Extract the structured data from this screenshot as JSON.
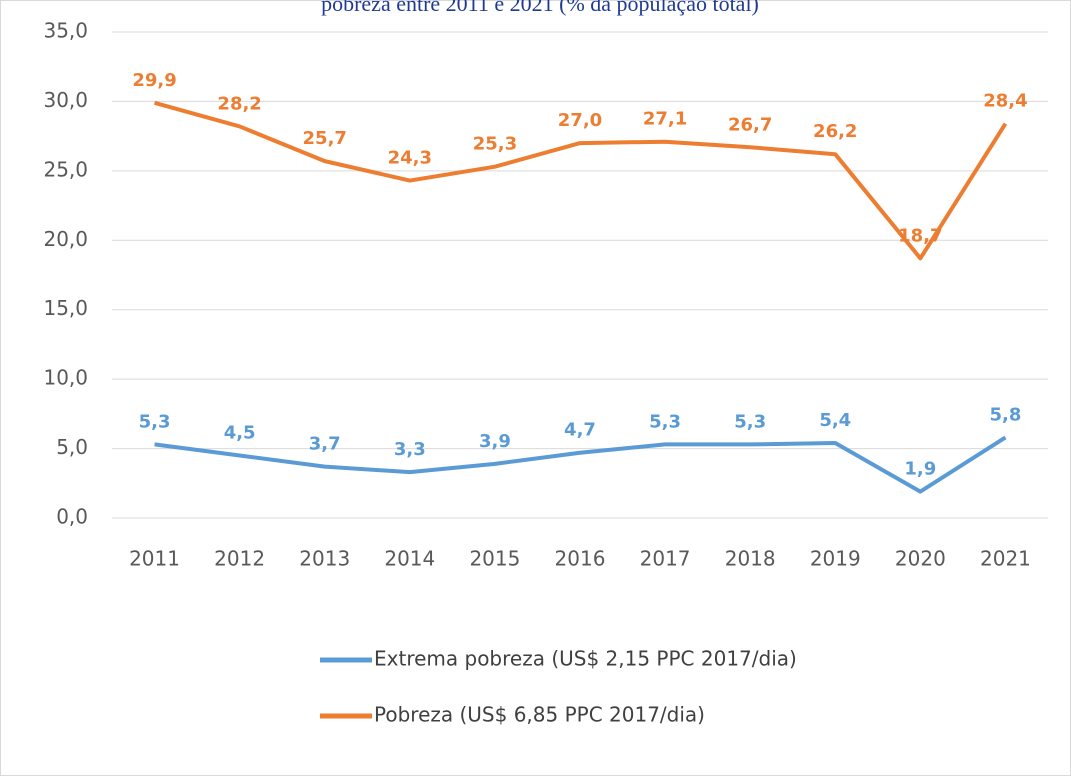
{
  "chart_data": {
    "type": "line",
    "title": "pobreza entre 2011 e 2021  (% da população total)",
    "categories": [
      "2011",
      "2012",
      "2013",
      "2014",
      "2015",
      "2016",
      "2017",
      "2018",
      "2019",
      "2020",
      "2021"
    ],
    "series": [
      {
        "name": "Extrema pobreza (US$ 2,15 PPC 2017/dia)",
        "color": "#5b9bd5",
        "values": [
          5.3,
          4.5,
          3.7,
          3.3,
          3.9,
          4.7,
          5.3,
          5.3,
          5.4,
          1.9,
          5.8
        ],
        "value_labels": [
          "5,3",
          "4,5",
          "3,7",
          "3,3",
          "3,9",
          "4,7",
          "5,3",
          "5,3",
          "5,4",
          "1,9",
          "5,8"
        ]
      },
      {
        "name": "Pobreza (US$ 6,85 PPC 2017/dia)",
        "color": "#ed7d31",
        "values": [
          29.9,
          28.2,
          25.7,
          24.3,
          25.3,
          27.0,
          27.1,
          26.7,
          26.2,
          18.7,
          28.4
        ],
        "value_labels": [
          "29,9",
          "28,2",
          "25,7",
          "24,3",
          "25,3",
          "27,0",
          "27,1",
          "26,7",
          "26,2",
          "18,7",
          "28,4"
        ]
      }
    ],
    "ylim": [
      0,
      35
    ],
    "yticks": [
      {
        "value": 0,
        "label": "0,0"
      },
      {
        "value": 5,
        "label": "5,0"
      },
      {
        "value": 10,
        "label": "10,0"
      },
      {
        "value": 15,
        "label": "15,0"
      },
      {
        "value": 20,
        "label": "20,0"
      },
      {
        "value": 25,
        "label": "25,0"
      },
      {
        "value": 30,
        "label": "30,0"
      },
      {
        "value": 35,
        "label": "35,0"
      }
    ],
    "grid": true,
    "legend": "bottom"
  }
}
